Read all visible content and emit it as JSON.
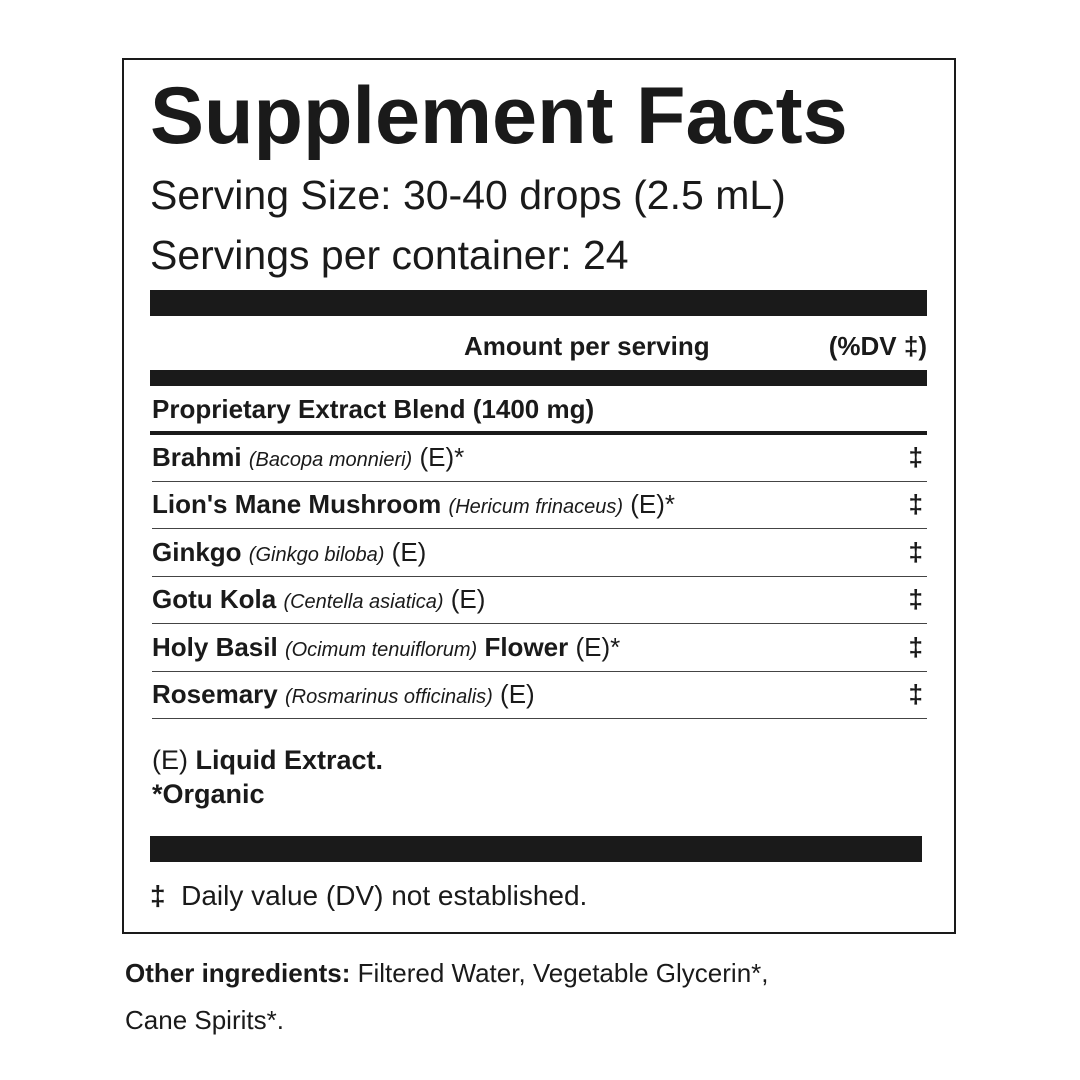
{
  "title": "Supplement Facts",
  "serving_size": "Serving Size: 30-40 drops (2.5 mL)",
  "servings_per_container": "Servings per container: 24",
  "amount_header": "Amount per serving",
  "dv_header": "(%DV ‡)",
  "blend": "Proprietary Extract Blend (1400 mg)",
  "rows": [
    {
      "name": "Brahmi",
      "latin": "(Bacopa monnieri)",
      "extra": "",
      "suffix": "(E)*",
      "dv": "‡"
    },
    {
      "name": "Lion's Mane Mushroom",
      "latin": "(Hericum frinaceus)",
      "extra": "",
      "suffix": "(E)*",
      "dv": "‡"
    },
    {
      "name": "Ginkgo",
      "latin": "(Ginkgo biloba)",
      "extra": "",
      "suffix": "(E)",
      "dv": "‡"
    },
    {
      "name": "Gotu Kola",
      "latin": "(Centella asiatica)",
      "extra": "",
      "suffix": "(E)",
      "dv": "‡"
    },
    {
      "name": "Holy Basil",
      "latin": "(Ocimum tenuiflorum)",
      "extra": "Flower",
      "suffix": "(E)*",
      "dv": "‡"
    },
    {
      "name": "Rosemary",
      "latin": "(Rosmarinus officinalis)",
      "extra": "",
      "suffix": "(E)",
      "dv": "‡"
    }
  ],
  "footnotes": {
    "e_symbol": "(E)",
    "e_text": "Liquid Extract.",
    "organic": "*Organic",
    "dv_symbol": "‡",
    "dv_text": "Daily value (DV) not established."
  },
  "other": {
    "label": "Other ingredients:",
    "line1": "Filtered Water, Vegetable Glycerin*,",
    "line2": "Cane Spirits*."
  }
}
